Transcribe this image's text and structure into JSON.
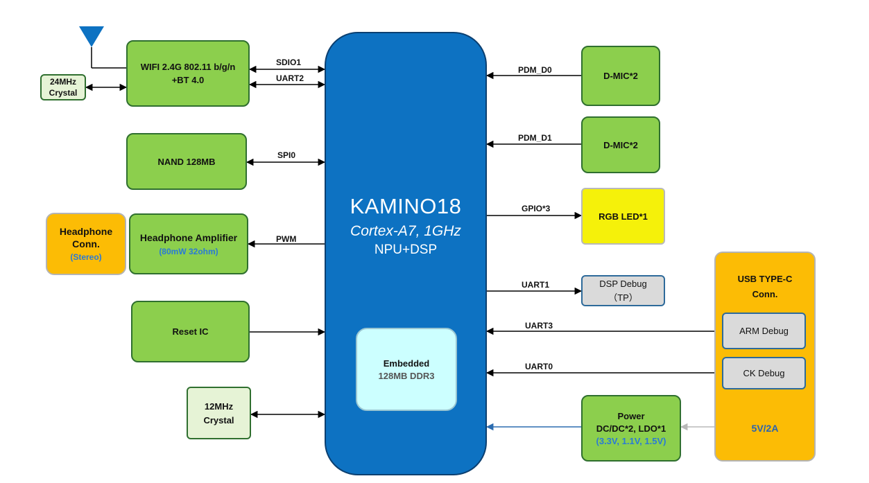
{
  "soc": {
    "name": "KAMINO18",
    "cpu": "Cortex-A7, 1GHz",
    "accel": "NPU+DSP",
    "memory_line1": "Embedded",
    "memory_line2": "128MB DDR3"
  },
  "blocks": {
    "wifi_line1": "WIFI 2.4G 802.11 b/g/n",
    "wifi_line2": "+BT 4.0",
    "crystal24_line1": "24MHz",
    "crystal24_line2": "Crystal",
    "nand": "NAND 128MB",
    "headphone_conn_line1": "Headphone",
    "headphone_conn_line2": "Conn.",
    "headphone_conn_line3": "(Stereo)",
    "hp_amp_line1": "Headphone Amplifier",
    "hp_amp_line2": "(80mW 32ohm)",
    "reset": "Reset IC",
    "crystal12_line1": "12MHz",
    "crystal12_line2": "Crystal",
    "dmic1": "D-MIC*2",
    "dmic2": "D-MIC*2",
    "rgb_led": "RGB LED*1",
    "dsp_debug_line1": "DSP Debug",
    "dsp_debug_line2": "（TP）",
    "usb_line1": "USB TYPE-C",
    "usb_line2": "Conn.",
    "arm_debug": "ARM Debug",
    "ck_debug": "CK Debug",
    "usb_power": "5V/2A",
    "power_line1": "Power",
    "power_line2": "DC/DC*2, LDO*1",
    "power_line3": "(3.3V, 1.1V, 1.5V)"
  },
  "signals": {
    "sdio1": "SDIO1",
    "uart2": "UART2",
    "spi0": "SPI0",
    "pwm": "PWM",
    "pdm_d0": "PDM_D0",
    "pdm_d1": "PDM_D1",
    "gpio3": "GPIO*3",
    "uart1": "UART1",
    "uart3": "UART3",
    "uart0": "UART0"
  },
  "colors": {
    "soc_blue": "#0d72c2",
    "module_green": "#8ccf4d",
    "crystal_green": "#e6f3d6",
    "usb_orange": "#fcbc05",
    "led_yellow": "#f5f10a",
    "debug_grey": "#dadada",
    "ddr_cyan": "#ccffff",
    "note_blue": "#2a7ad6",
    "antenna_blue": "#0d72c2"
  }
}
